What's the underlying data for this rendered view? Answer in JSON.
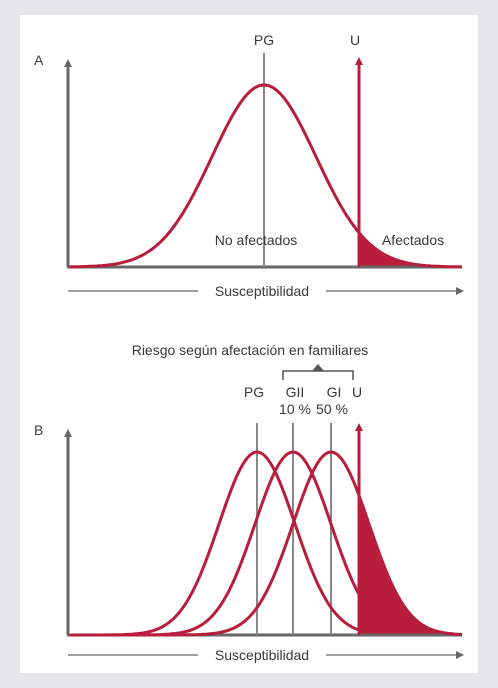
{
  "panel_a": {
    "letter": "A",
    "population_label": "PG",
    "threshold_label": "U",
    "unaffected_label": "No afectados",
    "affected_label": "Afectados",
    "axis_label": "Susceptibilidad"
  },
  "panel_b": {
    "letter": "B",
    "bracket_title": "Riesgo según afectación en familiares",
    "population_label": "PG",
    "gii_label": "GII",
    "gii_percent": "10 %",
    "gi_label": "GI",
    "gi_percent": "50 %",
    "threshold_label": "U",
    "axis_label": "Susceptibilidad"
  },
  "colors": {
    "curve": "#b81e3c",
    "axis": "#666666",
    "background": "#e6e6e8"
  }
}
